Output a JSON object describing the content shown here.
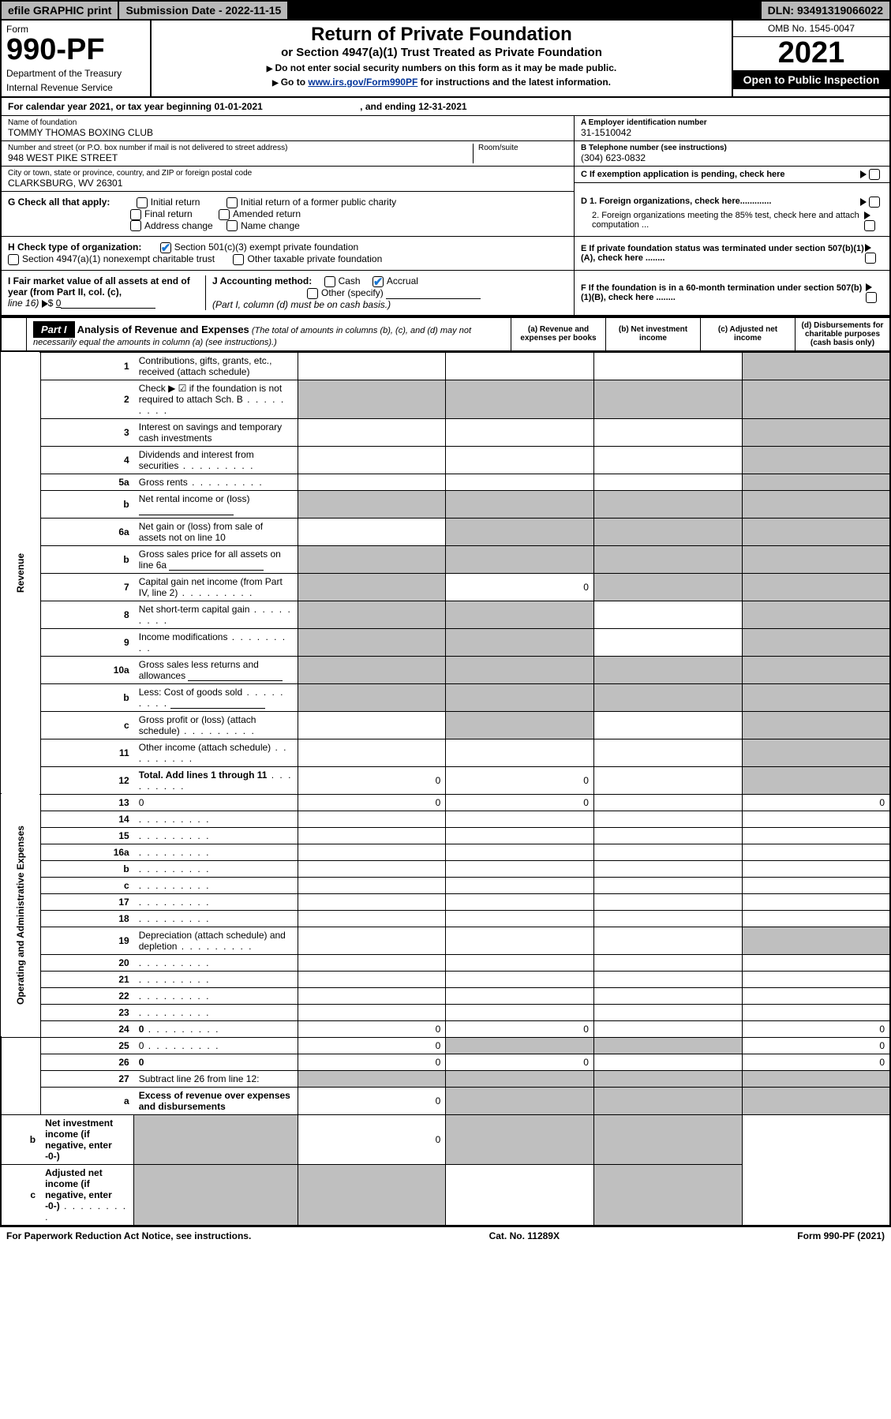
{
  "colors": {
    "shaded": "#bfbfbf",
    "black": "#000000",
    "white": "#ffffff",
    "link": "#003399",
    "check": "#1976d2",
    "topbar_bg": "#b8b8b8"
  },
  "topbar": {
    "efile": "efile GRAPHIC print",
    "subdate_label": "Submission Date - ",
    "subdate": "2022-11-15",
    "dln_label": "DLN: ",
    "dln": "93491319066022"
  },
  "header": {
    "form_label": "Form",
    "form_no": "990-PF",
    "dept1": "Department of the Treasury",
    "dept2": "Internal Revenue Service",
    "title": "Return of Private Foundation",
    "subtitle": "or Section 4947(a)(1) Trust Treated as Private Foundation",
    "instr1": "Do not enter social security numbers on this form as it may be made public.",
    "instr2_prefix": "Go to ",
    "instr2_link": "www.irs.gov/Form990PF",
    "instr2_suffix": " for instructions and the latest information.",
    "omb": "OMB No. 1545-0047",
    "year": "2021",
    "open": "Open to Public Inspection"
  },
  "calyear": {
    "text": "For calendar year 2021, or tax year beginning 01-01-2021",
    "ending": ", and ending 12-31-2021"
  },
  "foundation": {
    "name_label": "Name of foundation",
    "name": "TOMMY THOMAS BOXING CLUB",
    "addr_label": "Number and street (or P.O. box number if mail is not delivered to street address)",
    "room_label": "Room/suite",
    "addr": "948 WEST PIKE STREET",
    "city_label": "City or town, state or province, country, and ZIP or foreign postal code",
    "city": "CLARKSBURG, WV  26301",
    "ein_label": "A Employer identification number",
    "ein": "31-1510042",
    "tel_label": "B Telephone number (see instructions)",
    "tel": "(304) 623-0832",
    "c_label": "C  If exemption application is pending, check here"
  },
  "sectionG": {
    "label": "G Check all that apply:",
    "opts": [
      "Initial return",
      "Initial return of a former public charity",
      "Final return",
      "Amended return",
      "Address change",
      "Name change"
    ]
  },
  "sectionD": {
    "d1": "D 1. Foreign organizations, check here.............",
    "d2": "2. Foreign organizations meeting the 85% test, check here and attach computation ..."
  },
  "sectionH": {
    "label": "H Check type of organization:",
    "opt1": "Section 501(c)(3) exempt private foundation",
    "opt1_checked": true,
    "opt2": "Section 4947(a)(1) nonexempt charitable trust",
    "opt3": "Other taxable private foundation"
  },
  "sectionE": {
    "text": "E  If private foundation status was terminated under section 507(b)(1)(A), check here ........"
  },
  "sectionI": {
    "label": "I Fair market value of all assets at end of year (from Part II, col. (c),",
    "line16": "line 16)",
    "value": "0"
  },
  "sectionJ": {
    "label": "J Accounting method:",
    "cash": "Cash",
    "accrual": "Accrual",
    "accrual_checked": true,
    "other": "Other (specify)",
    "note": "(Part I, column (d) must be on cash basis.)"
  },
  "sectionF": {
    "text": "F  If the foundation is in a 60-month termination under section 507(b)(1)(B), check here ........"
  },
  "part1": {
    "label": "Part I",
    "title": "Analysis of Revenue and Expenses",
    "note": "(The total of amounts in columns (b), (c), and (d) may not necessarily equal the amounts in column (a) (see instructions).)",
    "cols": {
      "a": "(a)  Revenue and expenses per books",
      "b": "(b)  Net investment income",
      "c": "(c)  Adjusted net income",
      "d": "(d)  Disbursements for charitable purposes (cash basis only)"
    }
  },
  "sides": {
    "revenue": "Revenue",
    "expenses": "Operating and Administrative Expenses"
  },
  "rows": [
    {
      "n": "1",
      "d": "Contributions, gifts, grants, etc., received (attach schedule)",
      "a": "",
      "b": "",
      "c": "",
      "shaded_d": true
    },
    {
      "n": "2",
      "d": "Check ▶ ☑ if the foundation is not required to attach Sch. B",
      "dots": true,
      "shaded_all": true
    },
    {
      "n": "3",
      "d": "Interest on savings and temporary cash investments",
      "a": "",
      "b": "",
      "c": "",
      "shaded_d": true
    },
    {
      "n": "4",
      "d": "Dividends and interest from securities",
      "dots": true,
      "a": "",
      "b": "",
      "c": "",
      "shaded_d": true
    },
    {
      "n": "5a",
      "d": "Gross rents",
      "dots": true,
      "a": "",
      "b": "",
      "c": "",
      "shaded_d": true
    },
    {
      "n": "b",
      "d": "Net rental income or (loss)",
      "blank": true,
      "shaded_all": true
    },
    {
      "n": "6a",
      "d": "Net gain or (loss) from sale of assets not on line 10",
      "a": "",
      "shaded_bcd": true
    },
    {
      "n": "b",
      "d": "Gross sales price for all assets on line 6a",
      "blank": true,
      "shaded_all": true
    },
    {
      "n": "7",
      "d": "Capital gain net income (from Part IV, line 2)",
      "dots": true,
      "shaded_a": true,
      "b": "0",
      "shaded_cd": true
    },
    {
      "n": "8",
      "d": "Net short-term capital gain",
      "dots": true,
      "shaded_ab": true,
      "c": "",
      "shaded_d": true
    },
    {
      "n": "9",
      "d": "Income modifications",
      "dots": true,
      "shaded_ab": true,
      "c": "",
      "shaded_d": true
    },
    {
      "n": "10a",
      "d": "Gross sales less returns and allowances",
      "blank": true,
      "shaded_all": true
    },
    {
      "n": "b",
      "d": "Less: Cost of goods sold",
      "dots": true,
      "blank": true,
      "shaded_all": true
    },
    {
      "n": "c",
      "d": "Gross profit or (loss) (attach schedule)",
      "dots": true,
      "a": "",
      "shaded_b": true,
      "c": "",
      "shaded_d": true
    },
    {
      "n": "11",
      "d": "Other income (attach schedule)",
      "dots": true,
      "a": "",
      "b": "",
      "c": "",
      "shaded_d": true
    },
    {
      "n": "12",
      "d": "Total. Add lines 1 through 11",
      "dots": true,
      "bold": true,
      "a": "0",
      "b": "0",
      "c": "",
      "shaded_d": true
    },
    {
      "n": "13",
      "d": "0",
      "a": "0",
      "b": "0",
      "c": ""
    },
    {
      "n": "14",
      "d": "",
      "dots": true,
      "a": "",
      "b": "",
      "c": ""
    },
    {
      "n": "15",
      "d": "",
      "dots": true,
      "a": "",
      "b": "",
      "c": ""
    },
    {
      "n": "16a",
      "d": "",
      "dots": true,
      "a": "",
      "b": "",
      "c": ""
    },
    {
      "n": "b",
      "d": "",
      "dots": true,
      "a": "",
      "b": "",
      "c": ""
    },
    {
      "n": "c",
      "d": "",
      "dots": true,
      "a": "",
      "b": "",
      "c": ""
    },
    {
      "n": "17",
      "d": "",
      "dots": true,
      "a": "",
      "b": "",
      "c": ""
    },
    {
      "n": "18",
      "d": "",
      "dots": true,
      "a": "",
      "b": "",
      "c": ""
    },
    {
      "n": "19",
      "d": "Depreciation (attach schedule) and depletion",
      "dots": true,
      "a": "",
      "b": "",
      "c": "",
      "shaded_d": true
    },
    {
      "n": "20",
      "d": "",
      "dots": true,
      "a": "",
      "b": "",
      "c": ""
    },
    {
      "n": "21",
      "d": "",
      "dots": true,
      "a": "",
      "b": "",
      "c": ""
    },
    {
      "n": "22",
      "d": "",
      "dots": true,
      "a": "",
      "b": "",
      "c": ""
    },
    {
      "n": "23",
      "d": "",
      "dots": true,
      "a": "",
      "b": "",
      "c": ""
    },
    {
      "n": "24",
      "d": "0",
      "dots": true,
      "bold": true,
      "a": "0",
      "b": "0",
      "c": ""
    },
    {
      "n": "25",
      "d": "0",
      "dots": true,
      "a": "0",
      "shaded_bc": true
    },
    {
      "n": "26",
      "d": "0",
      "bold": true,
      "a": "0",
      "b": "0",
      "c": ""
    },
    {
      "n": "27",
      "d": "Subtract line 26 from line 12:",
      "shaded_all": true
    },
    {
      "n": "a",
      "d": "Excess of revenue over expenses and disbursements",
      "bold": true,
      "a": "0",
      "shaded_bcd": true
    },
    {
      "n": "b",
      "d": "Net investment income (if negative, enter -0-)",
      "bold": true,
      "shaded_a": true,
      "b": "0",
      "shaded_cd": true
    },
    {
      "n": "c",
      "d": "Adjusted net income (if negative, enter -0-)",
      "dots": true,
      "bold": true,
      "shaded_ab": true,
      "c": "",
      "shaded_d": true
    }
  ],
  "footer": {
    "left": "For Paperwork Reduction Act Notice, see instructions.",
    "center": "Cat. No. 11289X",
    "right": "Form 990-PF (2021)"
  }
}
